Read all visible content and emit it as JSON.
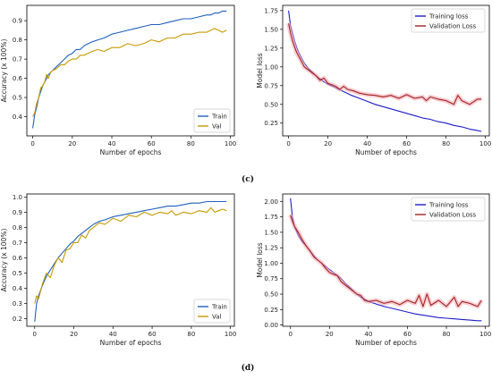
{
  "figure": {
    "panel_labels": [
      "(c)",
      "(d)"
    ]
  },
  "chart_data": [
    {
      "type": "line",
      "xlabel": "Number of epochs",
      "ylabel": "Accuracy (x 100%)",
      "xlim": [
        -3,
        102
      ],
      "ylim": [
        0.3,
        0.98
      ],
      "xticks": [
        0,
        20,
        40,
        60,
        80,
        100
      ],
      "yticks": [
        0.4,
        0.5,
        0.6,
        0.7,
        0.8,
        0.9
      ],
      "legend_position": "bottom-right",
      "series": [
        {
          "name": "Train",
          "color": "#1f5fbf",
          "x": [
            0,
            1,
            2,
            3,
            4,
            5,
            6,
            7,
            8,
            9,
            10,
            12,
            14,
            16,
            18,
            20,
            22,
            24,
            26,
            28,
            30,
            33,
            36,
            40,
            44,
            48,
            52,
            56,
            60,
            64,
            68,
            72,
            76,
            80,
            84,
            88,
            90,
            92,
            94,
            96,
            98
          ],
          "y": [
            0.34,
            0.41,
            0.45,
            0.5,
            0.53,
            0.56,
            0.58,
            0.6,
            0.62,
            0.63,
            0.64,
            0.66,
            0.68,
            0.7,
            0.72,
            0.73,
            0.75,
            0.75,
            0.77,
            0.78,
            0.79,
            0.8,
            0.81,
            0.83,
            0.84,
            0.85,
            0.86,
            0.87,
            0.88,
            0.88,
            0.89,
            0.9,
            0.91,
            0.91,
            0.92,
            0.93,
            0.93,
            0.94,
            0.94,
            0.95,
            0.95
          ]
        },
        {
          "name": "Val",
          "color": "#c89a00",
          "x": [
            0,
            1,
            2,
            3,
            4,
            5,
            6,
            7,
            8,
            9,
            10,
            12,
            14,
            16,
            18,
            20,
            22,
            24,
            26,
            28,
            30,
            33,
            36,
            40,
            44,
            48,
            52,
            56,
            60,
            64,
            68,
            72,
            76,
            80,
            84,
            88,
            90,
            92,
            94,
            96,
            98
          ],
          "y": [
            0.4,
            0.42,
            0.47,
            0.5,
            0.55,
            0.56,
            0.58,
            0.62,
            0.6,
            0.63,
            0.64,
            0.65,
            0.67,
            0.67,
            0.69,
            0.7,
            0.7,
            0.72,
            0.72,
            0.73,
            0.74,
            0.75,
            0.74,
            0.76,
            0.76,
            0.78,
            0.77,
            0.78,
            0.8,
            0.79,
            0.81,
            0.81,
            0.83,
            0.83,
            0.84,
            0.84,
            0.85,
            0.86,
            0.85,
            0.84,
            0.85
          ]
        }
      ]
    },
    {
      "type": "line",
      "xlabel": "Number of epochs",
      "ylabel": "Model loss",
      "xlim": [
        -3,
        102
      ],
      "ylim": [
        0.08,
        1.82
      ],
      "xticks": [
        0,
        20,
        40,
        60,
        80,
        100
      ],
      "yticks": [
        0.25,
        0.5,
        0.75,
        1.0,
        1.25,
        1.5,
        1.75
      ],
      "legend_position": "top-right",
      "series": [
        {
          "name": "Training loss",
          "color": "#1d1dc8",
          "x": [
            0,
            1,
            2,
            3,
            4,
            5,
            6,
            8,
            10,
            12,
            14,
            16,
            18,
            20,
            24,
            28,
            32,
            36,
            40,
            44,
            48,
            52,
            56,
            60,
            64,
            68,
            72,
            76,
            80,
            84,
            88,
            92,
            96,
            98
          ],
          "y": [
            1.75,
            1.55,
            1.45,
            1.35,
            1.27,
            1.2,
            1.15,
            1.05,
            0.98,
            0.93,
            0.88,
            0.84,
            0.8,
            0.77,
            0.72,
            0.67,
            0.62,
            0.58,
            0.54,
            0.5,
            0.47,
            0.44,
            0.41,
            0.38,
            0.35,
            0.32,
            0.3,
            0.27,
            0.25,
            0.22,
            0.2,
            0.17,
            0.15,
            0.14
          ]
        },
        {
          "name": "Validation Loss",
          "color": "#a52020",
          "x": [
            0,
            1,
            2,
            3,
            4,
            5,
            6,
            8,
            10,
            12,
            14,
            16,
            18,
            20,
            22,
            24,
            26,
            28,
            30,
            33,
            36,
            40,
            44,
            48,
            52,
            56,
            60,
            64,
            68,
            70,
            72,
            76,
            80,
            84,
            86,
            88,
            92,
            96,
            98
          ],
          "y": [
            1.58,
            1.45,
            1.35,
            1.27,
            1.2,
            1.15,
            1.1,
            1.0,
            0.96,
            0.92,
            0.88,
            0.82,
            0.85,
            0.78,
            0.76,
            0.74,
            0.7,
            0.74,
            0.7,
            0.68,
            0.65,
            0.63,
            0.62,
            0.6,
            0.62,
            0.58,
            0.63,
            0.58,
            0.6,
            0.55,
            0.6,
            0.57,
            0.55,
            0.5,
            0.62,
            0.55,
            0.5,
            0.57,
            0.57
          ]
        }
      ]
    },
    {
      "type": "line",
      "xlabel": "Number of epochs",
      "ylabel": "Accuracy (x 100%)",
      "xlim": [
        -4,
        102
      ],
      "ylim": [
        0.15,
        1.02
      ],
      "xticks": [
        0,
        20,
        40,
        60,
        80,
        100
      ],
      "yticks": [
        0.2,
        0.3,
        0.4,
        0.5,
        0.6,
        0.7,
        0.8,
        0.9,
        1.0
      ],
      "legend_position": "bottom-right",
      "series": [
        {
          "name": "Train",
          "color": "#1f5fbf",
          "x": [
            0,
            1,
            2,
            4,
            6,
            8,
            10,
            12,
            14,
            16,
            18,
            20,
            22,
            24,
            26,
            28,
            30,
            33,
            36,
            40,
            44,
            48,
            52,
            56,
            60,
            64,
            68,
            72,
            76,
            80,
            84,
            88,
            92,
            96,
            98
          ],
          "y": [
            0.18,
            0.3,
            0.35,
            0.42,
            0.48,
            0.52,
            0.56,
            0.6,
            0.63,
            0.66,
            0.69,
            0.71,
            0.74,
            0.76,
            0.78,
            0.8,
            0.82,
            0.84,
            0.85,
            0.87,
            0.88,
            0.89,
            0.9,
            0.91,
            0.92,
            0.93,
            0.94,
            0.94,
            0.95,
            0.96,
            0.96,
            0.97,
            0.97,
            0.97,
            0.97
          ]
        },
        {
          "name": "Val",
          "color": "#c89a00",
          "x": [
            0,
            1,
            2,
            4,
            6,
            8,
            10,
            12,
            14,
            16,
            18,
            20,
            22,
            24,
            26,
            28,
            30,
            33,
            36,
            40,
            44,
            48,
            52,
            56,
            60,
            64,
            68,
            70,
            72,
            76,
            80,
            84,
            88,
            90,
            92,
            94,
            96,
            98
          ],
          "y": [
            0.3,
            0.35,
            0.33,
            0.43,
            0.5,
            0.47,
            0.55,
            0.6,
            0.57,
            0.65,
            0.66,
            0.7,
            0.7,
            0.75,
            0.73,
            0.78,
            0.8,
            0.83,
            0.82,
            0.86,
            0.84,
            0.88,
            0.87,
            0.9,
            0.88,
            0.9,
            0.89,
            0.91,
            0.88,
            0.9,
            0.89,
            0.91,
            0.9,
            0.93,
            0.9,
            0.91,
            0.92,
            0.91
          ]
        }
      ]
    },
    {
      "type": "line",
      "xlabel": "Number of epochs",
      "ylabel": "Model loss",
      "xlim": [
        -4,
        102
      ],
      "ylim": [
        -0.02,
        2.12
      ],
      "xticks": [
        0,
        20,
        40,
        60,
        80,
        100
      ],
      "yticks": [
        0.0,
        0.25,
        0.5,
        0.75,
        1.0,
        1.25,
        1.5,
        1.75,
        2.0
      ],
      "legend_position": "top-right",
      "series": [
        {
          "name": "Training loss",
          "color": "#1d1dc8",
          "x": [
            0,
            1,
            2,
            4,
            6,
            8,
            10,
            12,
            14,
            16,
            18,
            20,
            22,
            24,
            26,
            28,
            30,
            32,
            34,
            36,
            38,
            40,
            44,
            48,
            52,
            56,
            60,
            64,
            68,
            72,
            76,
            80,
            84,
            88,
            92,
            96,
            98
          ],
          "y": [
            2.05,
            1.75,
            1.6,
            1.45,
            1.35,
            1.28,
            1.2,
            1.12,
            1.05,
            1.0,
            0.95,
            0.9,
            0.85,
            0.8,
            0.75,
            0.68,
            0.62,
            0.56,
            0.5,
            0.45,
            0.42,
            0.38,
            0.34,
            0.3,
            0.27,
            0.24,
            0.21,
            0.18,
            0.16,
            0.14,
            0.12,
            0.11,
            0.1,
            0.09,
            0.08,
            0.07,
            0.07
          ]
        },
        {
          "name": "Validation Loss",
          "color": "#a52020",
          "x": [
            0,
            1,
            2,
            4,
            6,
            8,
            10,
            12,
            14,
            16,
            18,
            20,
            22,
            24,
            26,
            28,
            30,
            32,
            34,
            36,
            38,
            40,
            44,
            48,
            52,
            56,
            60,
            64,
            66,
            68,
            70,
            72,
            76,
            80,
            84,
            86,
            88,
            92,
            96,
            98
          ],
          "y": [
            1.78,
            1.68,
            1.6,
            1.5,
            1.38,
            1.28,
            1.2,
            1.1,
            1.05,
            1.0,
            0.92,
            0.85,
            0.82,
            0.8,
            0.7,
            0.65,
            0.6,
            0.55,
            0.5,
            0.48,
            0.4,
            0.38,
            0.4,
            0.35,
            0.38,
            0.33,
            0.4,
            0.35,
            0.48,
            0.3,
            0.5,
            0.32,
            0.4,
            0.3,
            0.45,
            0.3,
            0.38,
            0.35,
            0.3,
            0.4
          ]
        }
      ]
    }
  ]
}
